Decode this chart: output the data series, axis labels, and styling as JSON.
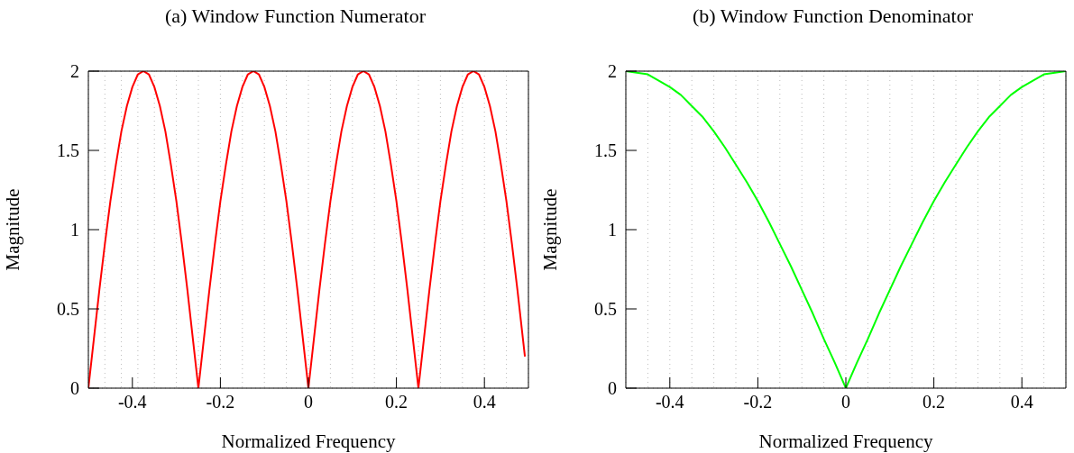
{
  "chart_data": [
    {
      "type": "line",
      "title": "(a) Window Function Numerator",
      "xlabel": "Normalized Frequency",
      "ylabel": "Magnitude",
      "x": [
        -0.5,
        -0.4875,
        -0.475,
        -0.4625,
        -0.45,
        -0.4375,
        -0.425,
        -0.4125,
        -0.4,
        -0.3875,
        -0.375,
        -0.3625,
        -0.35,
        -0.3375,
        -0.325,
        -0.3125,
        -0.3,
        -0.2875,
        -0.275,
        -0.2625,
        -0.25,
        -0.2375,
        -0.225,
        -0.2125,
        -0.2,
        -0.1875,
        -0.175,
        -0.1625,
        -0.15,
        -0.1375,
        -0.125,
        -0.1125,
        -0.1,
        -0.0875,
        -0.075,
        -0.0625,
        -0.05,
        -0.0375,
        -0.025,
        -0.0125,
        0,
        0.0125,
        0.025,
        0.0375,
        0.05,
        0.0625,
        0.075,
        0.0875,
        0.1,
        0.1125,
        0.125,
        0.1375,
        0.15,
        0.1625,
        0.175,
        0.1875,
        0.2,
        0.2125,
        0.225,
        0.2375,
        0.25,
        0.2625,
        0.275,
        0.2875,
        0.3,
        0.3125,
        0.325,
        0.3375,
        0.35,
        0.3625,
        0.375,
        0.3875,
        0.4,
        0.4125,
        0.425,
        0.4375,
        0.45,
        0.4625,
        0.475,
        0.4875,
        0.492
      ],
      "series": [
        {
          "color": "#ff0000",
          "values": [
            0,
            0.31,
            0.62,
            0.91,
            1.18,
            1.41,
            1.62,
            1.78,
            1.9,
            1.98,
            2,
            1.98,
            1.9,
            1.78,
            1.62,
            1.41,
            1.18,
            0.91,
            0.62,
            0.31,
            0,
            0.31,
            0.62,
            0.91,
            1.18,
            1.41,
            1.62,
            1.78,
            1.9,
            1.98,
            2,
            1.98,
            1.9,
            1.78,
            1.62,
            1.41,
            1.18,
            0.91,
            0.62,
            0.31,
            0,
            0.31,
            0.62,
            0.91,
            1.18,
            1.41,
            1.62,
            1.78,
            1.9,
            1.98,
            2,
            1.98,
            1.9,
            1.78,
            1.62,
            1.41,
            1.18,
            0.91,
            0.62,
            0.31,
            0,
            0.31,
            0.62,
            0.91,
            1.18,
            1.41,
            1.62,
            1.78,
            1.9,
            1.98,
            2,
            1.98,
            1.9,
            1.78,
            1.62,
            1.41,
            1.18,
            0.91,
            0.62,
            0.31,
            0.2
          ]
        }
      ],
      "xlim": [
        -0.5,
        0.5
      ],
      "xticks": [
        -0.4,
        -0.2,
        0,
        0.2,
        0.4
      ],
      "ylim": [
        0,
        2
      ],
      "yticks": [
        0,
        0.5,
        1,
        1.5,
        2
      ],
      "grid": true,
      "line_style": "solid",
      "marker": "none"
    },
    {
      "type": "line",
      "title": "(b) Window Function Denominator",
      "xlabel": "Normalized Frequency",
      "ylabel": "Magnitude",
      "x": [
        -0.5,
        -0.475,
        -0.45,
        -0.425,
        -0.4,
        -0.375,
        -0.35,
        -0.325,
        -0.3,
        -0.275,
        -0.25,
        -0.225,
        -0.2,
        -0.175,
        -0.15,
        -0.125,
        -0.1,
        -0.075,
        -0.05,
        -0.025,
        0,
        0.025,
        0.05,
        0.075,
        0.1,
        0.125,
        0.15,
        0.175,
        0.2,
        0.225,
        0.25,
        0.275,
        0.3,
        0.325,
        0.35,
        0.375,
        0.4,
        0.425,
        0.45,
        0.475,
        0.5
      ],
      "series": [
        {
          "color": "#00ff00",
          "values": [
            2,
            1.99,
            1.98,
            1.94,
            1.9,
            1.85,
            1.78,
            1.71,
            1.62,
            1.52,
            1.41,
            1.3,
            1.18,
            1.05,
            0.91,
            0.77,
            0.62,
            0.47,
            0.31,
            0.16,
            0,
            0.16,
            0.31,
            0.47,
            0.62,
            0.77,
            0.91,
            1.05,
            1.18,
            1.3,
            1.41,
            1.52,
            1.62,
            1.71,
            1.78,
            1.85,
            1.9,
            1.94,
            1.98,
            1.99,
            2
          ]
        }
      ],
      "xlim": [
        -0.5,
        0.5
      ],
      "xticks": [
        -0.4,
        -0.2,
        0,
        0.2,
        0.4
      ],
      "ylim": [
        0,
        2
      ],
      "yticks": [
        0,
        0.5,
        1,
        1.5,
        2
      ],
      "grid": true,
      "line_style": "solid",
      "marker": "none"
    }
  ]
}
